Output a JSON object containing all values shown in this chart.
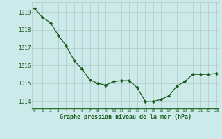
{
  "x": [
    0,
    1,
    2,
    3,
    4,
    5,
    6,
    7,
    8,
    9,
    10,
    11,
    12,
    13,
    14,
    15,
    16,
    17,
    18,
    19,
    20,
    21,
    22,
    23
  ],
  "y": [
    1019.2,
    1018.7,
    1018.4,
    1017.7,
    1017.1,
    1016.3,
    1015.8,
    1015.2,
    1015.0,
    1014.9,
    1015.1,
    1015.15,
    1015.15,
    1014.75,
    1014.0,
    1014.0,
    1014.1,
    1014.3,
    1014.85,
    1015.1,
    1015.5,
    1015.5,
    1015.5,
    1015.55
  ],
  "line_color": "#1a5c1a",
  "marker": "D",
  "marker_size": 2.2,
  "bg_color": "#cceaea",
  "grid_color": "#b0c8c8",
  "xlabel": "Graphe pression niveau de la mer (hPa)",
  "xlabel_color": "#1a5c1a",
  "tick_color": "#1a5c1a",
  "yticks": [
    1014,
    1015,
    1016,
    1017,
    1018,
    1019
  ],
  "xticks": [
    0,
    1,
    2,
    3,
    4,
    5,
    6,
    7,
    8,
    9,
    10,
    11,
    12,
    13,
    14,
    15,
    16,
    17,
    18,
    19,
    20,
    21,
    22,
    23
  ],
  "ylim": [
    1013.6,
    1019.55
  ],
  "xlim": [
    -0.3,
    23.3
  ]
}
